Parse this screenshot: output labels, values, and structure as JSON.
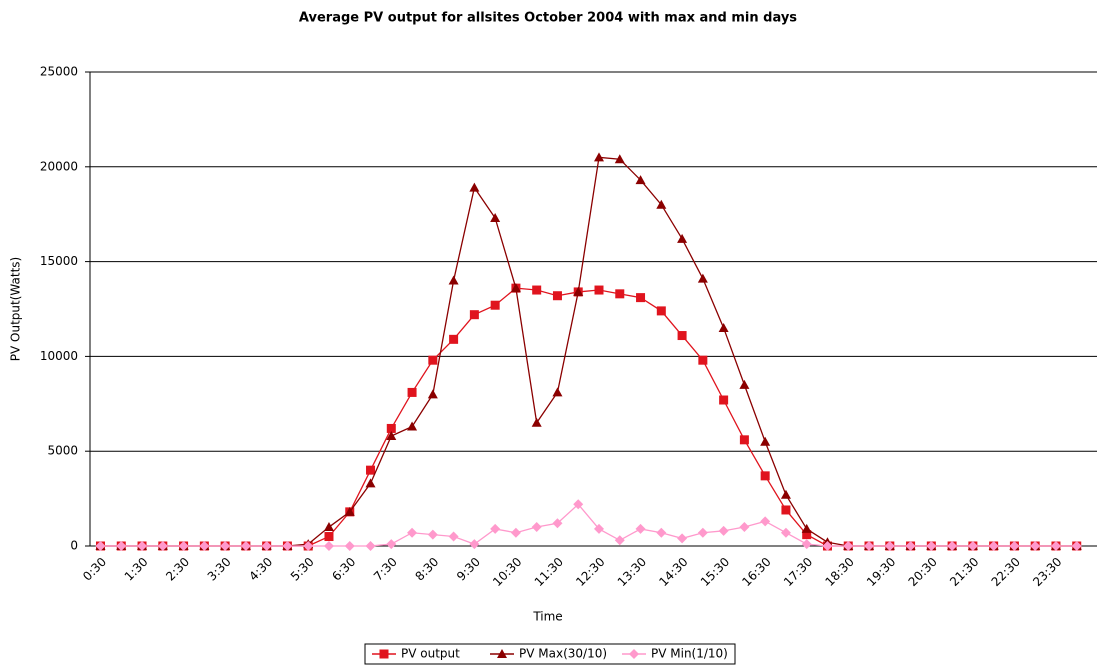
{
  "chart_data": {
    "type": "line",
    "title": "Average PV output for allsites October 2004 with max and min days",
    "x_label": "Time",
    "y_label": "PV Output(Watts)",
    "categories": [
      "0:30",
      null,
      "1:30",
      null,
      "2:30",
      null,
      "3:30",
      null,
      "4:30",
      null,
      "5:30",
      null,
      "6:30",
      null,
      "7:30",
      null,
      "8:30",
      null,
      "9:30",
      null,
      "10:30",
      null,
      "11:30",
      null,
      "12:30",
      null,
      "13:30",
      null,
      "14:30",
      null,
      "15:30",
      null,
      "16:30",
      null,
      "17:30",
      null,
      "18:30",
      null,
      "19:30",
      null,
      "20:30",
      null,
      "21:30",
      null,
      "22:30",
      null,
      "23:30",
      null
    ],
    "series": [
      {
        "name": "PV output",
        "color": "#e0141e",
        "marker": "square",
        "values": [
          0,
          0,
          0,
          0,
          0,
          0,
          0,
          0,
          0,
          0,
          0,
          500,
          1800,
          4000,
          6200,
          8100,
          9800,
          10900,
          12200,
          12700,
          13600,
          13500,
          13200,
          13400,
          13500,
          13300,
          13100,
          12400,
          11100,
          9800,
          7700,
          5600,
          3700,
          1900,
          600,
          0,
          0,
          0,
          0,
          0,
          0,
          0,
          0,
          0,
          0,
          0,
          0,
          0
        ]
      },
      {
        "name": "PV Max(30/10)",
        "color": "#8b0000",
        "marker": "triangle",
        "values": [
          0,
          0,
          0,
          0,
          0,
          0,
          0,
          0,
          0,
          0,
          100,
          1000,
          1800,
          3300,
          5800,
          6300,
          8000,
          14000,
          18900,
          17300,
          13600,
          6500,
          8100,
          13400,
          20500,
          20400,
          19300,
          18000,
          16200,
          14100,
          11500,
          8500,
          5500,
          2700,
          900,
          200,
          0,
          0,
          0,
          0,
          0,
          0,
          0,
          0,
          0,
          0,
          0,
          0
        ]
      },
      {
        "name": "PV Min(1/10)",
        "color": "#ff99cc",
        "marker": "diamond",
        "values": [
          0,
          0,
          0,
          0,
          0,
          0,
          0,
          0,
          0,
          0,
          0,
          0,
          0,
          0,
          100,
          700,
          600,
          500,
          100,
          900,
          700,
          1000,
          1200,
          2200,
          900,
          300,
          900,
          700,
          400,
          700,
          800,
          1000,
          1300,
          700,
          100,
          0,
          0,
          0,
          0,
          0,
          0,
          0,
          0,
          0,
          0,
          0,
          0,
          0
        ]
      }
    ],
    "ylim": [
      0,
      25000
    ],
    "yticks": [
      0,
      5000,
      10000,
      15000,
      20000,
      25000
    ],
    "grid": true,
    "legend": "bottom"
  }
}
